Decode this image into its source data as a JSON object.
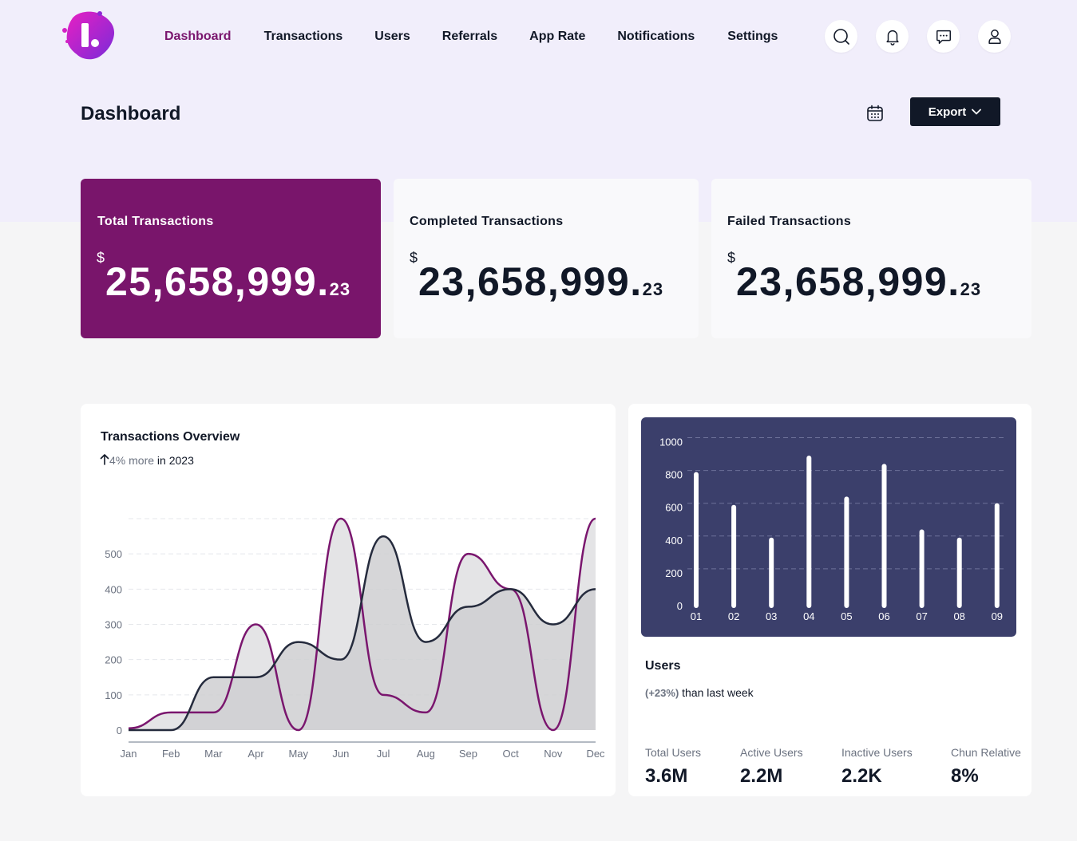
{
  "nav": {
    "items": [
      {
        "label": "Dashboard",
        "active": true
      },
      {
        "label": "Transactions",
        "active": false
      },
      {
        "label": "Users",
        "active": false
      },
      {
        "label": "Referrals",
        "active": false
      },
      {
        "label": "App Rate",
        "active": false
      },
      {
        "label": "Notifications",
        "active": false
      },
      {
        "label": "Settings",
        "active": false
      }
    ],
    "icons": [
      "search-icon",
      "bell-icon",
      "chat-icon",
      "user-icon"
    ]
  },
  "page": {
    "title": "Dashboard",
    "export_label": "Export"
  },
  "stats": [
    {
      "label": "Total Transactions",
      "currency": "$",
      "whole": "25,658,999.",
      "cents": "23"
    },
    {
      "label": "Completed Transactions",
      "currency": "$",
      "whole": "23,658,999.",
      "cents": "23"
    },
    {
      "label": "Failed Transactions",
      "currency": "$",
      "whole": "23,658,999.",
      "cents": "23"
    }
  ],
  "overview": {
    "title": "Transactions Overview",
    "change": "4% more",
    "period": " in 2023"
  },
  "users": {
    "title": "Users",
    "change": "(+23%)",
    "change_text": " than last week",
    "stats": [
      {
        "label": "Total Users",
        "value": "3.6M"
      },
      {
        "label": "Active Users",
        "value": "2.2M"
      },
      {
        "label": "Inactive Users",
        "value": "2.2K"
      },
      {
        "label": "Chun Relative",
        "value": "8%"
      }
    ]
  },
  "colors": {
    "primary": "#79156b",
    "dark": "#111827",
    "panel": "#3b3f6b",
    "line_purple": "#7a166e",
    "line_dark": "#252b3d"
  },
  "chart_data": [
    {
      "type": "area",
      "categories": [
        "Jan",
        "Feb",
        "Mar",
        "Apr",
        "May",
        "Jun",
        "Jul",
        "Aug",
        "Sep",
        "Oct",
        "Nov",
        "Dec"
      ],
      "yticks": [
        0,
        100,
        200,
        300,
        400,
        500
      ],
      "ylim": [
        0,
        600
      ],
      "grid": true,
      "series": [
        {
          "values": [
            5,
            50,
            50,
            300,
            0,
            600,
            100,
            50,
            500,
            400,
            0,
            600
          ]
        },
        {
          "values": [
            0,
            0,
            150,
            150,
            250,
            200,
            550,
            250,
            350,
            400,
            300,
            400
          ]
        }
      ]
    },
    {
      "type": "bar",
      "categories": [
        "01",
        "02",
        "03",
        "04",
        "05",
        "06",
        "07",
        "08",
        "09"
      ],
      "values": [
        800,
        600,
        400,
        900,
        650,
        850,
        450,
        400,
        610
      ],
      "yticks": [
        0,
        200,
        400,
        600,
        800,
        1000
      ],
      "ylim": [
        0,
        1000
      ],
      "grid": true
    }
  ]
}
